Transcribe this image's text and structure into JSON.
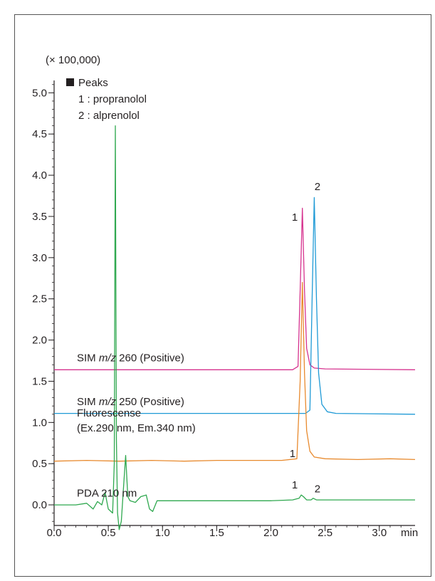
{
  "chart_data": {
    "type": "line",
    "title": "",
    "xlabel": "",
    "ylabel": "",
    "scale_label": "(× 100,000)",
    "x_unit": "min",
    "xlim": [
      0.0,
      3.33
    ],
    "ylim": [
      -0.25,
      5.15
    ],
    "x_ticks": [
      0.0,
      0.5,
      1.0,
      1.5,
      2.0,
      2.5,
      3.0
    ],
    "x_tick_labels": [
      "0.0",
      "0.5",
      "1.0",
      "1.5",
      "2.0",
      "2.5",
      "3.0"
    ],
    "y_ticks": [
      0.0,
      0.5,
      1.0,
      1.5,
      2.0,
      2.5,
      3.0,
      3.5,
      4.0,
      4.5,
      5.0
    ],
    "y_tick_labels": [
      "0.0",
      "0.5",
      "1.0",
      "1.5",
      "2.0",
      "2.5",
      "3.0",
      "3.5",
      "4.0",
      "4.5",
      "5.0"
    ],
    "grid": false,
    "legend": {
      "title": "Peaks",
      "items": [
        "1 : propranolol",
        "2 : alprenolol"
      ]
    },
    "series": [
      {
        "name": "SIM m/z 260 (Positive)",
        "color": "#d6338f",
        "x": [
          0.0,
          2.2,
          2.25,
          2.27,
          2.29,
          2.31,
          2.33,
          2.36,
          2.4,
          2.5,
          3.33
        ],
        "y": [
          1.64,
          1.64,
          1.68,
          2.6,
          3.6,
          2.6,
          1.9,
          1.7,
          1.66,
          1.65,
          1.64
        ]
      },
      {
        "name": "SIM m/z 250 (Positive)",
        "color": "#1f9ad6",
        "x": [
          0.0,
          2.32,
          2.36,
          2.38,
          2.4,
          2.42,
          2.44,
          2.47,
          2.52,
          2.6,
          3.33
        ],
        "y": [
          1.11,
          1.11,
          1.15,
          2.5,
          3.73,
          2.5,
          1.6,
          1.22,
          1.13,
          1.11,
          1.1
        ]
      },
      {
        "name": "Fluorescense (Ex.290 nm, Em.340 nm)",
        "color": "#e88a2e",
        "x": [
          0.0,
          0.3,
          0.6,
          0.9,
          1.2,
          1.5,
          1.8,
          2.1,
          2.24,
          2.27,
          2.29,
          2.31,
          2.33,
          2.36,
          2.4,
          2.5,
          2.8,
          3.1,
          3.33
        ],
        "y": [
          0.53,
          0.54,
          0.53,
          0.54,
          0.53,
          0.54,
          0.54,
          0.54,
          0.56,
          1.5,
          2.7,
          1.6,
          0.9,
          0.65,
          0.58,
          0.56,
          0.55,
          0.56,
          0.55
        ]
      },
      {
        "name": "PDA 210 nm",
        "color": "#2fa84f",
        "x": [
          0.0,
          0.2,
          0.3,
          0.36,
          0.4,
          0.44,
          0.47,
          0.5,
          0.54,
          0.555,
          0.565,
          0.575,
          0.585,
          0.6,
          0.62,
          0.64,
          0.66,
          0.68,
          0.7,
          0.75,
          0.8,
          0.85,
          0.88,
          0.91,
          0.95,
          1.0,
          1.2,
          1.6,
          2.0,
          2.2,
          2.26,
          2.28,
          2.3,
          2.33,
          2.37,
          2.39,
          2.42,
          2.6,
          3.0,
          3.33
        ],
        "y": [
          0.0,
          0.0,
          0.02,
          -0.05,
          0.04,
          0.0,
          0.15,
          -0.05,
          -0.1,
          0.5,
          4.6,
          0.8,
          -0.1,
          -0.3,
          -0.2,
          0.2,
          0.6,
          0.1,
          0.05,
          0.03,
          0.1,
          0.12,
          -0.05,
          -0.08,
          0.05,
          0.05,
          0.05,
          0.05,
          0.05,
          0.06,
          0.08,
          0.12,
          0.1,
          0.06,
          0.06,
          0.08,
          0.06,
          0.06,
          0.06,
          0.06
        ]
      }
    ],
    "trace_labels": [
      {
        "lines": [
          "SIM  m/z 260 (Positive)"
        ],
        "italic": "m/z"
      },
      {
        "lines": [
          "SIM  m/z 250 (Positive)"
        ],
        "italic": "m/z"
      },
      {
        "lines": [
          "Fluorescense",
          "(Ex.290 nm, Em.340 nm)"
        ]
      },
      {
        "lines": [
          "PDA  210 nm"
        ]
      }
    ],
    "peak_labels": [
      {
        "text": "1",
        "x": 2.22,
        "y": 3.45
      },
      {
        "text": "2",
        "x": 2.43,
        "y": 3.82
      },
      {
        "text": "1",
        "x": 2.2,
        "y": 0.58
      },
      {
        "text": "1",
        "x": 2.22,
        "y": 0.2
      },
      {
        "text": "2",
        "x": 2.43,
        "y": 0.15
      }
    ]
  }
}
